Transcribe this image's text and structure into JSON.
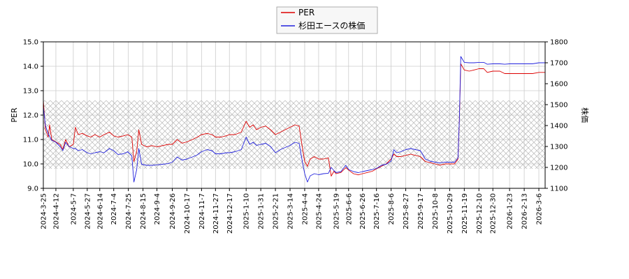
{
  "chart_data": {
    "type": "line",
    "legend": {
      "placement": "top-center",
      "entries": [
        "PER",
        "杉田エースの株価"
      ]
    },
    "y_left": {
      "label": "PER",
      "range": [
        9.0,
        15.0
      ],
      "ticks": [
        "9.0",
        "10.0",
        "11.0",
        "12.0",
        "13.0",
        "14.0",
        "15.0"
      ]
    },
    "y_right": {
      "label": "株価",
      "range": [
        1100,
        1800
      ],
      "ticks": [
        "1100",
        "1200",
        "1300",
        "1400",
        "1500",
        "1600",
        "1700",
        "1800"
      ]
    },
    "x_range": [
      "2024-03-25",
      "2026-03-15"
    ],
    "x_ticks": [
      "2024-3-25",
      "2024-4-12",
      "2024-5-7",
      "2024-5-27",
      "2024-6-14",
      "2024-7-4",
      "2024-7-25",
      "2024-8-15",
      "2024-9-4",
      "2024-9-26",
      "2024-10-17",
      "2024-11-7",
      "2024-11-27",
      "2024-12-17",
      "2025-1-10",
      "2025-1-31",
      "2025-2-21",
      "2025-3-14",
      "2025-4-4",
      "2025-4-24",
      "2025-5-19",
      "2025-6-6",
      "2025-6-26",
      "2025-7-16",
      "2025-8-6",
      "2025-8-27",
      "2025-9-17",
      "2025-10-8",
      "2025-10-29",
      "2025-11-19",
      "2025-12-10",
      "2025-12-30",
      "2026-1-23",
      "2026-2-13",
      "2026-3-6"
    ],
    "grid": true,
    "band": {
      "description": "hatched range",
      "y_left_range": [
        9.8,
        12.6
      ]
    },
    "series": [
      {
        "name": "PER",
        "axis": "left",
        "color": "#dd0000",
        "points": [
          [
            "2024-03-25",
            12.6
          ],
          [
            "2024-03-28",
            11.4
          ],
          [
            "2024-04-01",
            11.1
          ],
          [
            "2024-04-03",
            11.6
          ],
          [
            "2024-04-06",
            11.0
          ],
          [
            "2024-04-12",
            10.9
          ],
          [
            "2024-04-18",
            10.8
          ],
          [
            "2024-04-22",
            10.6
          ],
          [
            "2024-04-26",
            11.0
          ],
          [
            "2024-05-01",
            10.7
          ],
          [
            "2024-05-07",
            10.8
          ],
          [
            "2024-05-10",
            11.5
          ],
          [
            "2024-05-14",
            11.2
          ],
          [
            "2024-05-20",
            11.25
          ],
          [
            "2024-05-27",
            11.15
          ],
          [
            "2024-06-01",
            11.1
          ],
          [
            "2024-06-07",
            11.2
          ],
          [
            "2024-06-14",
            11.1
          ],
          [
            "2024-06-20",
            11.2
          ],
          [
            "2024-06-28",
            11.3
          ],
          [
            "2024-07-04",
            11.15
          ],
          [
            "2024-07-10",
            11.1
          ],
          [
            "2024-07-18",
            11.15
          ],
          [
            "2024-07-24",
            11.2
          ],
          [
            "2024-07-30",
            11.1
          ],
          [
            "2024-08-02",
            10.1
          ],
          [
            "2024-08-06",
            10.5
          ],
          [
            "2024-08-09",
            11.4
          ],
          [
            "2024-08-13",
            10.8
          ],
          [
            "2024-08-20",
            10.7
          ],
          [
            "2024-08-28",
            10.75
          ],
          [
            "2024-09-04",
            10.7
          ],
          [
            "2024-09-12",
            10.75
          ],
          [
            "2024-09-20",
            10.8
          ],
          [
            "2024-09-26",
            10.8
          ],
          [
            "2024-10-03",
            11.0
          ],
          [
            "2024-10-10",
            10.85
          ],
          [
            "2024-10-17",
            10.9
          ],
          [
            "2024-10-25",
            11.0
          ],
          [
            "2024-11-01",
            11.1
          ],
          [
            "2024-11-07",
            11.2
          ],
          [
            "2024-11-15",
            11.25
          ],
          [
            "2024-11-22",
            11.2
          ],
          [
            "2024-11-27",
            11.1
          ],
          [
            "2024-12-05",
            11.1
          ],
          [
            "2024-12-12",
            11.15
          ],
          [
            "2024-12-17",
            11.2
          ],
          [
            "2024-12-25",
            11.2
          ],
          [
            "2025-01-03",
            11.3
          ],
          [
            "2025-01-10",
            11.75
          ],
          [
            "2025-01-15",
            11.5
          ],
          [
            "2025-01-20",
            11.6
          ],
          [
            "2025-01-25",
            11.4
          ],
          [
            "2025-01-31",
            11.5
          ],
          [
            "2025-02-07",
            11.55
          ],
          [
            "2025-02-14",
            11.4
          ],
          [
            "2025-02-21",
            11.2
          ],
          [
            "2025-02-28",
            11.3
          ],
          [
            "2025-03-07",
            11.4
          ],
          [
            "2025-03-14",
            11.5
          ],
          [
            "2025-03-21",
            11.6
          ],
          [
            "2025-03-27",
            11.55
          ],
          [
            "2025-04-01",
            10.6
          ],
          [
            "2025-04-04",
            10.1
          ],
          [
            "2025-04-08",
            9.9
          ],
          [
            "2025-04-12",
            10.2
          ],
          [
            "2025-04-18",
            10.3
          ],
          [
            "2025-04-24",
            10.2
          ],
          [
            "2025-05-01",
            10.2
          ],
          [
            "2025-05-08",
            10.25
          ],
          [
            "2025-05-12",
            9.5
          ],
          [
            "2025-05-16",
            9.7
          ],
          [
            "2025-05-19",
            9.6
          ],
          [
            "2025-05-26",
            9.65
          ],
          [
            "2025-06-02",
            9.85
          ],
          [
            "2025-06-06",
            9.75
          ],
          [
            "2025-06-13",
            9.6
          ],
          [
            "2025-06-20",
            9.55
          ],
          [
            "2025-06-26",
            9.6
          ],
          [
            "2025-07-03",
            9.65
          ],
          [
            "2025-07-10",
            9.7
          ],
          [
            "2025-07-16",
            9.8
          ],
          [
            "2025-07-23",
            9.9
          ],
          [
            "2025-07-30",
            10.0
          ],
          [
            "2025-08-06",
            10.2
          ],
          [
            "2025-08-10",
            10.4
          ],
          [
            "2025-08-14",
            10.3
          ],
          [
            "2025-08-20",
            10.3
          ],
          [
            "2025-08-27",
            10.35
          ],
          [
            "2025-09-03",
            10.4
          ],
          [
            "2025-09-10",
            10.35
          ],
          [
            "2025-09-17",
            10.3
          ],
          [
            "2025-09-24",
            10.1
          ],
          [
            "2025-10-01",
            10.05
          ],
          [
            "2025-10-08",
            10.0
          ],
          [
            "2025-10-15",
            9.95
          ],
          [
            "2025-10-22",
            10.0
          ],
          [
            "2025-10-29",
            10.0
          ],
          [
            "2025-11-05",
            10.0
          ],
          [
            "2025-11-10",
            10.2
          ],
          [
            "2025-11-12",
            11.8
          ],
          [
            "2025-11-14",
            14.1
          ],
          [
            "2025-11-19",
            13.85
          ],
          [
            "2025-11-26",
            13.8
          ],
          [
            "2025-12-03",
            13.85
          ],
          [
            "2025-12-10",
            13.9
          ],
          [
            "2025-12-17",
            13.9
          ],
          [
            "2025-12-22",
            13.75
          ],
          [
            "2025-12-30",
            13.8
          ],
          [
            "2026-01-09",
            13.8
          ],
          [
            "2026-01-16",
            13.7
          ],
          [
            "2026-01-23",
            13.7
          ],
          [
            "2026-02-01",
            13.7
          ],
          [
            "2026-02-13",
            13.7
          ],
          [
            "2026-02-25",
            13.7
          ],
          [
            "2026-03-06",
            13.75
          ],
          [
            "2026-03-15",
            13.75
          ]
        ]
      },
      {
        "name": "杉田エースの株価",
        "axis": "right",
        "color": "#2222dd",
        "points": [
          [
            "2024-03-25",
            1490
          ],
          [
            "2024-03-28",
            1400
          ],
          [
            "2024-04-01",
            1360
          ],
          [
            "2024-04-06",
            1330
          ],
          [
            "2024-04-12",
            1320
          ],
          [
            "2024-04-18",
            1300
          ],
          [
            "2024-04-22",
            1280
          ],
          [
            "2024-04-26",
            1320
          ],
          [
            "2024-05-01",
            1300
          ],
          [
            "2024-05-07",
            1290
          ],
          [
            "2024-05-10",
            1290
          ],
          [
            "2024-05-14",
            1280
          ],
          [
            "2024-05-20",
            1285
          ],
          [
            "2024-05-27",
            1270
          ],
          [
            "2024-06-01",
            1265
          ],
          [
            "2024-06-07",
            1270
          ],
          [
            "2024-06-14",
            1275
          ],
          [
            "2024-06-20",
            1270
          ],
          [
            "2024-06-28",
            1290
          ],
          [
            "2024-07-04",
            1280
          ],
          [
            "2024-07-10",
            1262
          ],
          [
            "2024-07-18",
            1265
          ],
          [
            "2024-07-24",
            1275
          ],
          [
            "2024-07-30",
            1255
          ],
          [
            "2024-08-02",
            1130
          ],
          [
            "2024-08-06",
            1190
          ],
          [
            "2024-08-09",
            1290
          ],
          [
            "2024-08-13",
            1215
          ],
          [
            "2024-08-20",
            1210
          ],
          [
            "2024-08-28",
            1210
          ],
          [
            "2024-09-04",
            1212
          ],
          [
            "2024-09-12",
            1215
          ],
          [
            "2024-09-20",
            1218
          ],
          [
            "2024-09-26",
            1225
          ],
          [
            "2024-10-03",
            1250
          ],
          [
            "2024-10-10",
            1235
          ],
          [
            "2024-10-17",
            1240
          ],
          [
            "2024-10-25",
            1250
          ],
          [
            "2024-11-01",
            1260
          ],
          [
            "2024-11-07",
            1275
          ],
          [
            "2024-11-15",
            1285
          ],
          [
            "2024-11-22",
            1280
          ],
          [
            "2024-11-27",
            1265
          ],
          [
            "2024-12-05",
            1265
          ],
          [
            "2024-12-12",
            1270
          ],
          [
            "2024-12-17",
            1270
          ],
          [
            "2024-12-25",
            1275
          ],
          [
            "2025-01-03",
            1285
          ],
          [
            "2025-01-10",
            1345
          ],
          [
            "2025-01-15",
            1310
          ],
          [
            "2025-01-20",
            1320
          ],
          [
            "2025-01-25",
            1305
          ],
          [
            "2025-01-31",
            1310
          ],
          [
            "2025-02-07",
            1315
          ],
          [
            "2025-02-14",
            1300
          ],
          [
            "2025-02-21",
            1270
          ],
          [
            "2025-02-28",
            1285
          ],
          [
            "2025-03-07",
            1295
          ],
          [
            "2025-03-14",
            1305
          ],
          [
            "2025-03-21",
            1320
          ],
          [
            "2025-03-27",
            1315
          ],
          [
            "2025-04-01",
            1220
          ],
          [
            "2025-04-04",
            1170
          ],
          [
            "2025-04-08",
            1130
          ],
          [
            "2025-04-12",
            1160
          ],
          [
            "2025-04-18",
            1170
          ],
          [
            "2025-04-24",
            1165
          ],
          [
            "2025-05-01",
            1170
          ],
          [
            "2025-05-08",
            1172
          ],
          [
            "2025-05-12",
            1200
          ],
          [
            "2025-05-16",
            1185
          ],
          [
            "2025-05-19",
            1175
          ],
          [
            "2025-05-26",
            1180
          ],
          [
            "2025-06-02",
            1210
          ],
          [
            "2025-06-06",
            1190
          ],
          [
            "2025-06-13",
            1180
          ],
          [
            "2025-06-20",
            1175
          ],
          [
            "2025-06-26",
            1180
          ],
          [
            "2025-07-03",
            1185
          ],
          [
            "2025-07-10",
            1190
          ],
          [
            "2025-07-16",
            1195
          ],
          [
            "2025-07-23",
            1210
          ],
          [
            "2025-07-30",
            1215
          ],
          [
            "2025-08-06",
            1230
          ],
          [
            "2025-08-10",
            1285
          ],
          [
            "2025-08-14",
            1270
          ],
          [
            "2025-08-20",
            1275
          ],
          [
            "2025-08-27",
            1285
          ],
          [
            "2025-09-03",
            1290
          ],
          [
            "2025-09-10",
            1285
          ],
          [
            "2025-09-17",
            1280
          ],
          [
            "2025-09-24",
            1240
          ],
          [
            "2025-10-01",
            1230
          ],
          [
            "2025-10-08",
            1225
          ],
          [
            "2025-10-15",
            1222
          ],
          [
            "2025-10-22",
            1225
          ],
          [
            "2025-10-29",
            1225
          ],
          [
            "2025-11-05",
            1225
          ],
          [
            "2025-11-10",
            1245
          ],
          [
            "2025-11-12",
            1430
          ],
          [
            "2025-11-14",
            1730
          ],
          [
            "2025-11-19",
            1702
          ],
          [
            "2025-11-26",
            1700
          ],
          [
            "2025-12-03",
            1700
          ],
          [
            "2025-12-10",
            1702
          ],
          [
            "2025-12-17",
            1702
          ],
          [
            "2025-12-22",
            1693
          ],
          [
            "2025-12-30",
            1695
          ],
          [
            "2026-01-09",
            1695
          ],
          [
            "2026-01-16",
            1693
          ],
          [
            "2026-01-23",
            1695
          ],
          [
            "2026-02-01",
            1695
          ],
          [
            "2026-02-13",
            1695
          ],
          [
            "2026-02-25",
            1695
          ],
          [
            "2026-03-06",
            1700
          ],
          [
            "2026-03-15",
            1700
          ]
        ]
      }
    ]
  }
}
